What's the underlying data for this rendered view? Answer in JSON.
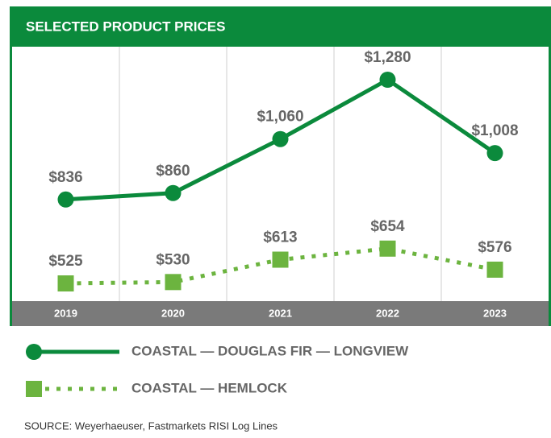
{
  "chart_data": {
    "type": "line",
    "title": "SELECTED PRODUCT PRICES",
    "categories": [
      "2019",
      "2020",
      "2021",
      "2022",
      "2023"
    ],
    "series": [
      {
        "name": "COASTAL — DOUGLAS FIR — LONGVIEW",
        "color": "#0b8a3c",
        "marker": "circle",
        "line": "solid",
        "values": [
          836,
          860,
          1060,
          1280,
          1008
        ],
        "value_labels": [
          "$836",
          "$860",
          "$1,060",
          "$1,280",
          "$1,008"
        ]
      },
      {
        "name": "COASTAL — HEMLOCK",
        "color": "#6cb43f",
        "marker": "square",
        "line": "dotted",
        "values": [
          525,
          530,
          613,
          654,
          576
        ],
        "value_labels": [
          "$525",
          "$530",
          "$613",
          "$654",
          "$576"
        ]
      }
    ],
    "source": "SOURCE: Weyerhaeuser, Fastmarkets RISI Log Lines",
    "grid": true
  }
}
